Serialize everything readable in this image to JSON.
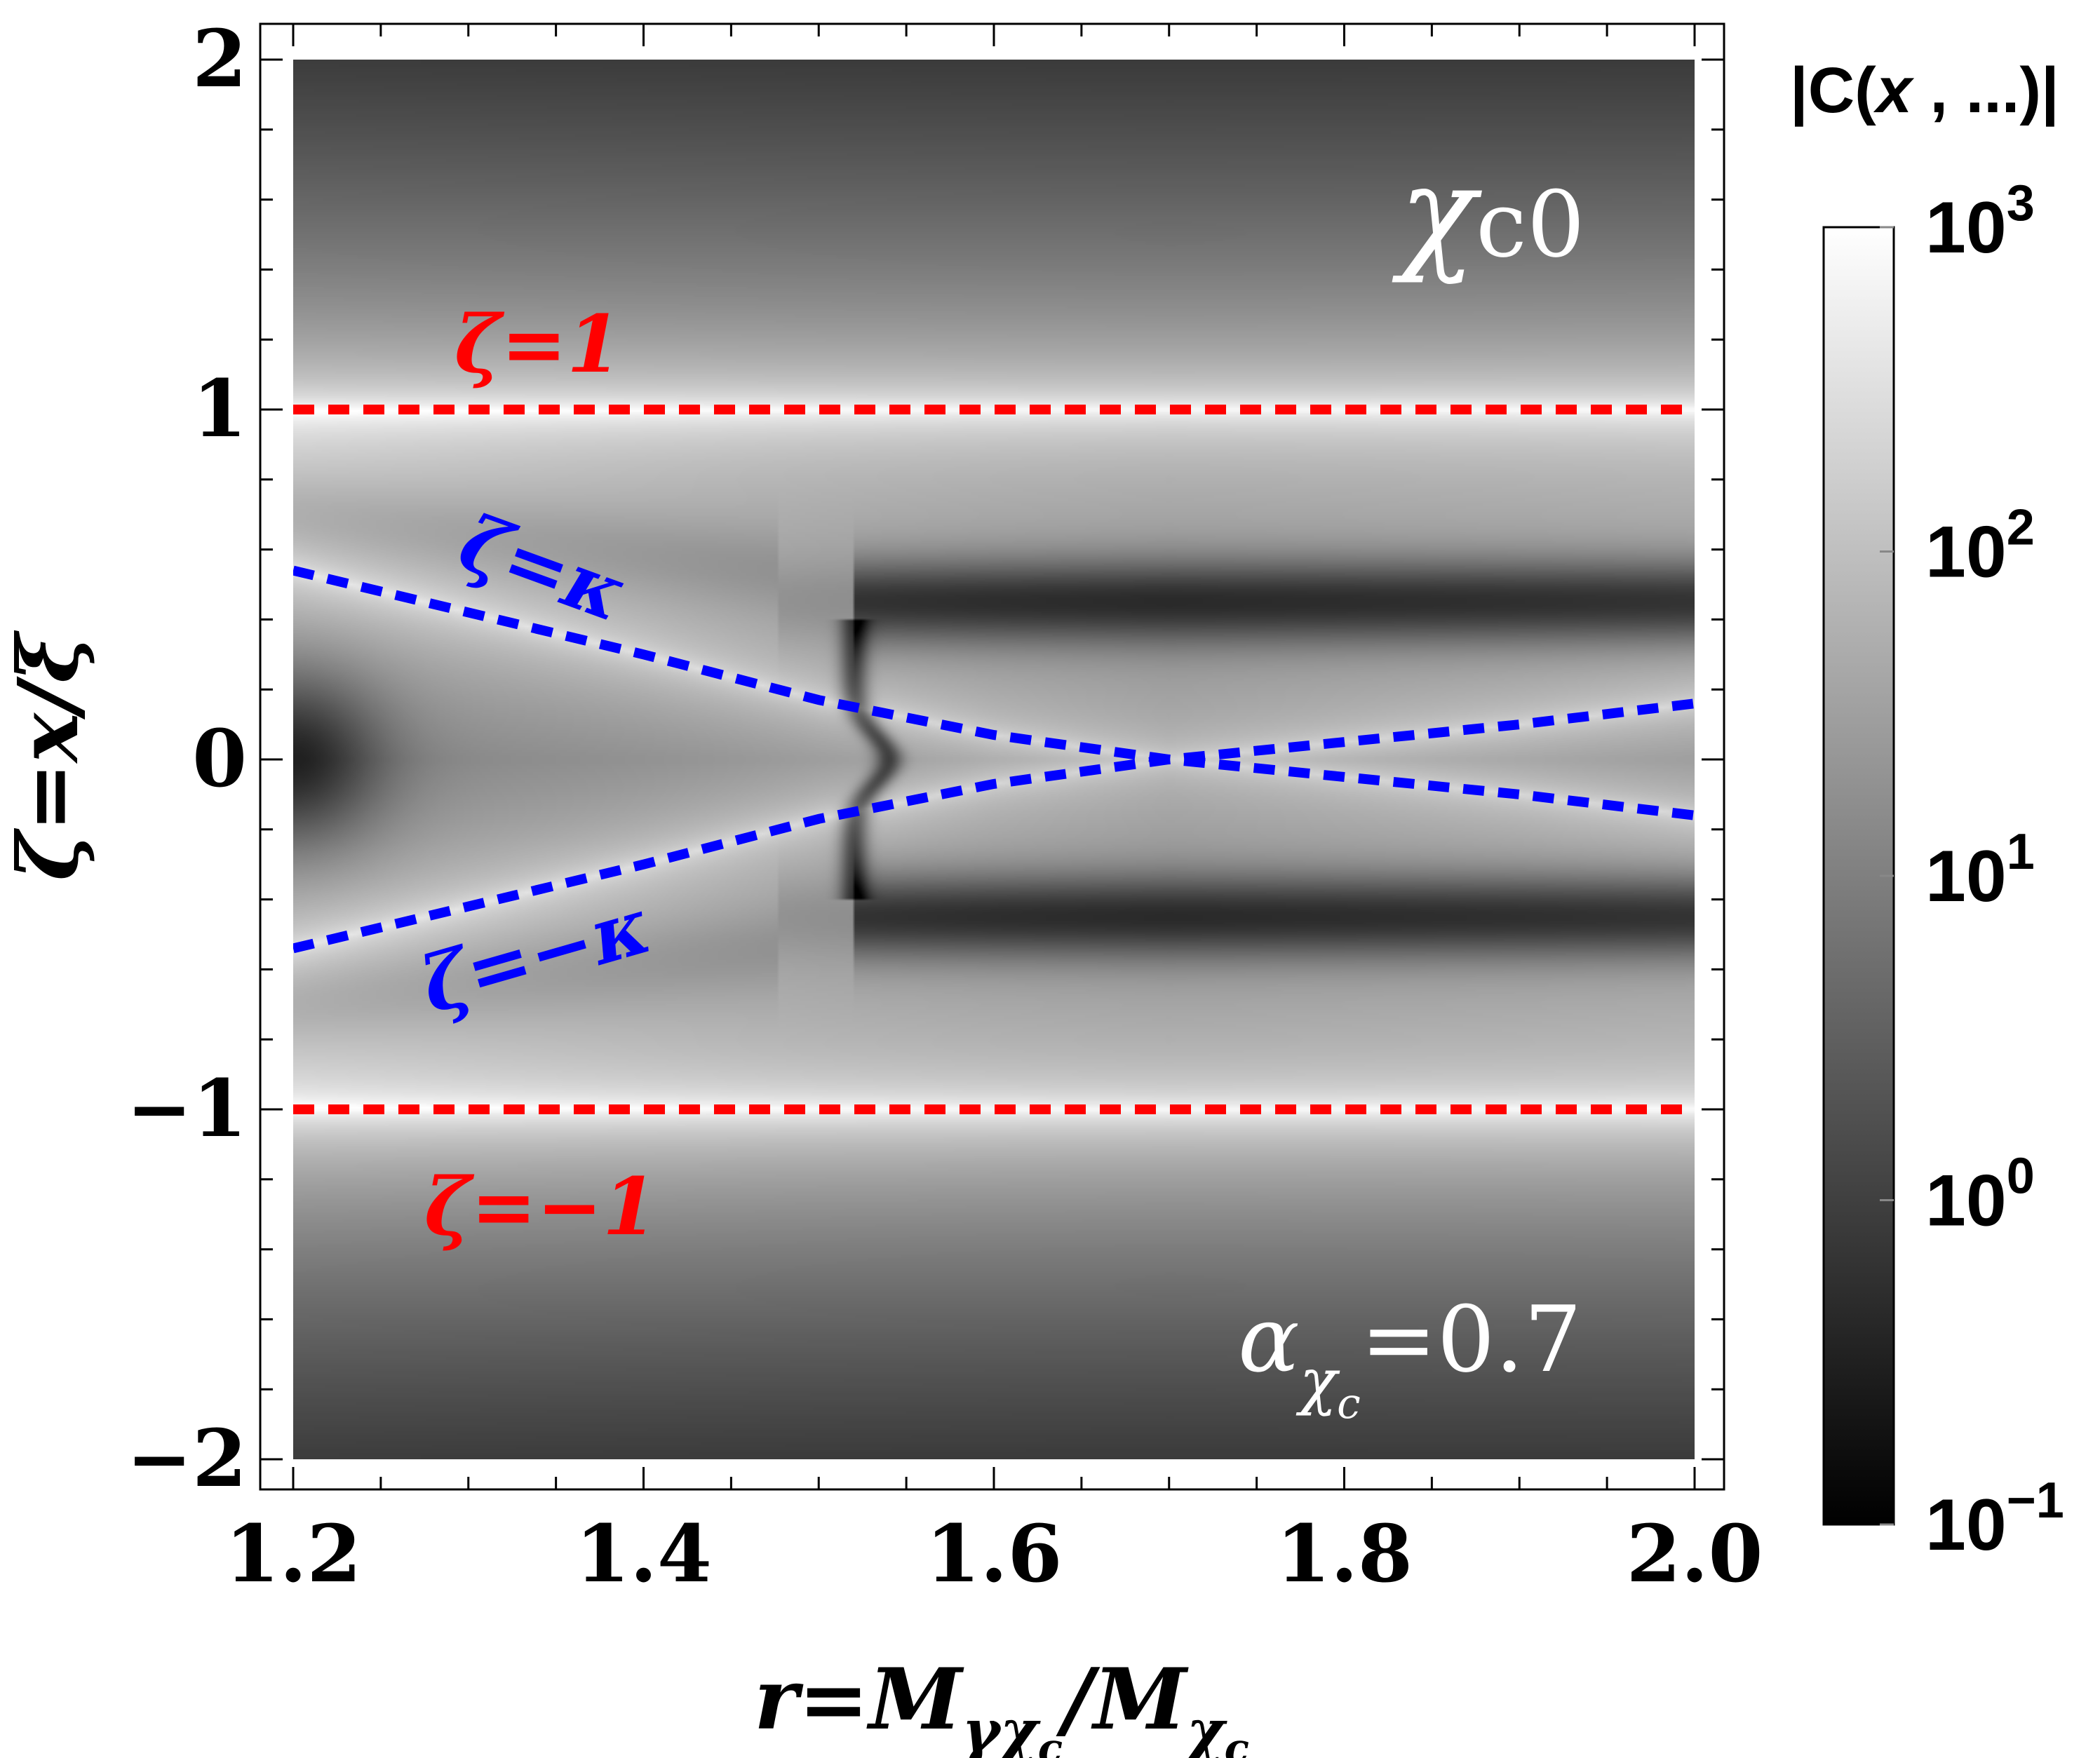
{
  "chart_data": {
    "type": "heatmap",
    "title": "",
    "xlabel": "r=M_{γχ_c}/M_{χ_c}",
    "xlabel_parts": {
      "lhs": "r=M",
      "sub1": "γχ",
      "sub1b": "c",
      "slash": "/M",
      "sub2": "χ",
      "sub2b": "c"
    },
    "ylabel": "ζ=x/ξ",
    "xlim": [
      1.2,
      2.0
    ],
    "ylim": [
      -2,
      2
    ],
    "x_ticks": [
      "1.2",
      "1.4",
      "1.6",
      "1.8",
      "2.0"
    ],
    "x_tick_values": [
      1.2,
      1.4,
      1.6,
      1.8,
      2.0
    ],
    "y_ticks": [
      "−2",
      "−1",
      "0",
      "1",
      "2"
    ],
    "y_tick_values": [
      -2,
      -1,
      0,
      1,
      2
    ],
    "z_label": "|C(x , ...)|",
    "z_label_parts": {
      "pre": "|C(",
      "x": "x",
      "post": " , ...)|"
    },
    "z_scale": "log",
    "z_range": [
      0.1,
      1000
    ],
    "colorbar_ticks": [
      {
        "base": "10",
        "exp": "3",
        "value": 1000
      },
      {
        "base": "10",
        "exp": "2",
        "value": 100
      },
      {
        "base": "10",
        "exp": "1",
        "value": 10
      },
      {
        "base": "10",
        "exp": "0",
        "value": 1
      },
      {
        "base": "10",
        "exp": "−1",
        "value": 0.1
      }
    ],
    "colormap": "grayscale (black = low, white = high)",
    "curves": [
      {
        "name": "ζ=1",
        "label": "ζ=1",
        "color": "#ff0000",
        "style": "dashed",
        "kind": "constant",
        "zeta": 1
      },
      {
        "name": "ζ=−1",
        "label": "ζ=−1",
        "color": "#ff0000",
        "style": "dashed",
        "kind": "constant",
        "zeta": -1
      },
      {
        "name": "ζ=κ",
        "label": "ζ=κ",
        "color": "#0000ff",
        "style": "dashed",
        "kind": "kappa",
        "sign": 1,
        "points": [
          [
            1.2,
            0.54
          ],
          [
            1.3,
            0.42
          ],
          [
            1.4,
            0.3
          ],
          [
            1.5,
            0.17
          ],
          [
            1.6,
            0.07
          ],
          [
            1.7,
            0.0
          ],
          [
            1.8,
            0.05
          ],
          [
            1.9,
            0.1
          ],
          [
            2.0,
            0.16
          ]
        ]
      },
      {
        "name": "ζ=−κ",
        "label": "ζ=−κ",
        "color": "#0000ff",
        "style": "dashed",
        "kind": "kappa",
        "sign": -1,
        "points": [
          [
            1.2,
            -0.54
          ],
          [
            1.3,
            -0.42
          ],
          [
            1.4,
            -0.3
          ],
          [
            1.5,
            -0.17
          ],
          [
            1.6,
            -0.07
          ],
          [
            1.7,
            0.0
          ],
          [
            1.8,
            -0.05
          ],
          [
            1.9,
            -0.1
          ],
          [
            2.0,
            -0.16
          ]
        ]
      }
    ],
    "panel_label": {
      "symbol": "χ",
      "sub": "c0"
    },
    "parameter": {
      "symbol": "α",
      "sub1": "χ",
      "sub2": "c",
      "value": "=0.7"
    },
    "colors": {
      "zeta_unit": "#ff0000",
      "zeta_kappa": "#0000ff",
      "text": "#000000",
      "annotation": "#ffffff"
    }
  }
}
